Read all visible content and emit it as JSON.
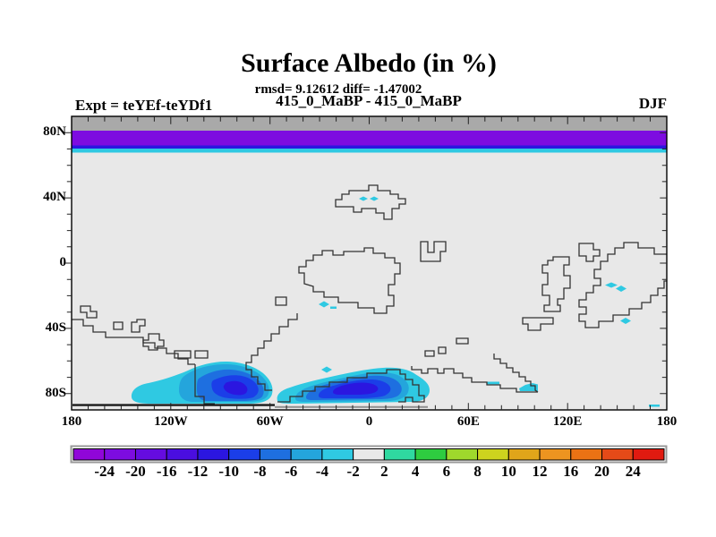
{
  "title": "Surface Albedo (in %)",
  "subtitle_stats": "rmsd= 9.12612 diff= -1.47002",
  "subtitle_runs": "415_0_MaBP - 415_0_MaBP",
  "experiment_label": "Expt = teYEf-teYDf1",
  "season_label": "DJF",
  "axes": {
    "lon_ticks": [
      {
        "label": "180",
        "deg": -180
      },
      {
        "label": "120W",
        "deg": -120
      },
      {
        "label": "60W",
        "deg": -60
      },
      {
        "label": "0",
        "deg": 0
      },
      {
        "label": "60E",
        "deg": 60
      },
      {
        "label": "120E",
        "deg": 120
      },
      {
        "label": "180",
        "deg": 180
      }
    ],
    "lat_ticks": [
      {
        "label": "80N",
        "deg": 80
      },
      {
        "label": "40N",
        "deg": 40
      },
      {
        "label": "0",
        "deg": 0
      },
      {
        "label": "40S",
        "deg": -40
      },
      {
        "label": "80S",
        "deg": -80
      }
    ]
  },
  "colorbar": {
    "boundary_labels": [
      "-24",
      "-20",
      "-16",
      "-12",
      "-10",
      "-8",
      "-6",
      "-4",
      "-2",
      "2",
      "4",
      "6",
      "8",
      "10",
      "12",
      "16",
      "20",
      "24"
    ],
    "palette": [
      "#9006d9",
      "#7d0ce0",
      "#650ce0",
      "#4a0ee0",
      "#2b16e0",
      "#1b3ee8",
      "#1e6fe0",
      "#24a5dc",
      "#2fc9e2",
      "#e8e8e8",
      "#2fd9a0",
      "#2ecc40",
      "#9fd82c",
      "#cdd31e",
      "#e0a51a",
      "#ed9420",
      "#ea7214",
      "#e54a18",
      "#e01a10"
    ]
  },
  "map_colors": {
    "background": "#e8e8e8",
    "top_band_gray": "#a9a9a9",
    "coastline": "#333333",
    "frame": "#000000"
  },
  "chart_data": {
    "type": "heatmap",
    "subtype": "filled-contour difference map, equirectangular lat-lon",
    "title": "Surface Albedo (in %)",
    "stats": {
      "rmsd": 9.12612,
      "diff": -1.47002
    },
    "difference_of": "415_0_MaBP - 415_0_MaBP",
    "experiment": "teYEf-teYDf1",
    "season": "DJF",
    "x_range_deg": [
      -180,
      180
    ],
    "y_range_deg": [
      -90,
      90
    ],
    "x_tick_labels": [
      "180",
      "120W",
      "60W",
      "0",
      "60E",
      "120E",
      "180"
    ],
    "y_tick_labels": [
      "80N",
      "40N",
      "0",
      "40S",
      "80S"
    ],
    "minor_tick_interval_deg": 10,
    "contour_levels": [
      -24,
      -20,
      -16,
      -12,
      -10,
      -8,
      -6,
      -4,
      -2,
      2,
      4,
      6,
      8,
      10,
      12,
      16,
      20,
      24
    ],
    "legend_position": "bottom colorbar",
    "features": [
      {
        "region": "90N-82N cap, all longitudes",
        "value": "no data / map margin",
        "appearance": "solid gray band"
      },
      {
        "region": "82N-69N, all longitudes",
        "value_range": "-24 to -20",
        "appearance": "solid purple band"
      },
      {
        "region": "~69N-67N, all longitudes",
        "value_range": "-4 to -2",
        "appearance": "thin cyan strip under purple band"
      },
      {
        "region": "Antarctic coast ~72S-88S, 140W-95W",
        "value_range": "-12 to -2",
        "appearance": "cyan blob with dark blue core"
      },
      {
        "region": "Antarctic coast ~75S-88S, 95W-35W",
        "value_range": "-12 to -2",
        "appearance": "larger cyan blob with dark blue core"
      },
      {
        "region": "small spots near 42N 40W/36W; 10S 15W; 25S ~5E; 10S-30S 45E-60E; 67S 115E",
        "value_range": "-4 to -2",
        "appearance": "tiny cyan diamonds/dashes"
      },
      {
        "region": "everywhere else",
        "value_range": "-2 to 2",
        "appearance": "light gray (near zero difference)"
      }
    ]
  }
}
